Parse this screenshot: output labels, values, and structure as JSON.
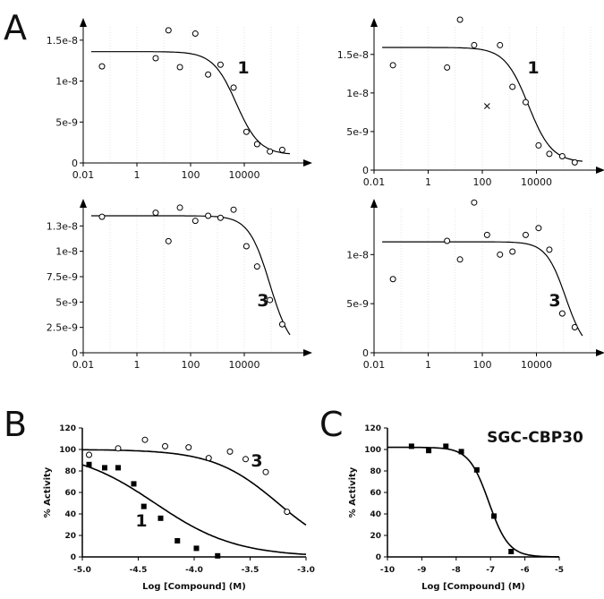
{
  "panel_letters": [
    "A",
    "B",
    "C"
  ],
  "chart_data": [
    {
      "id": "A1",
      "type": "scatter",
      "xscale": "log",
      "xticks": [
        "0.01",
        "1",
        "100",
        "10000"
      ],
      "yticks": [
        {
          "v": 0,
          "label": "0"
        },
        {
          "v": 5e-09,
          "label": "5e-9"
        },
        {
          "v": 1e-08,
          "label": "1e-8"
        },
        {
          "v": 1.5e-08,
          "label": "1.5e-8"
        }
      ],
      "compound_label": "1",
      "points": [
        [
          0.05,
          1.18e-08
        ],
        [
          5,
          1.28e-08
        ],
        [
          15,
          1.62e-08
        ],
        [
          40,
          1.17e-08
        ],
        [
          150,
          1.58e-08
        ],
        [
          450,
          1.08e-08
        ],
        [
          1300,
          1.2e-08
        ],
        [
          4000,
          9.2e-09
        ],
        [
          12000,
          3.8e-09
        ],
        [
          30000,
          2.3e-09
        ],
        [
          90000,
          1.4e-09
        ],
        [
          260000,
          1.6e-09
        ]
      ],
      "outliers": [],
      "fit": {
        "top": 1.36e-08,
        "bottom": 1e-09,
        "ic50": 5000,
        "hill": 1
      }
    },
    {
      "id": "A2",
      "type": "scatter",
      "xscale": "log",
      "xticks": [
        "0.01",
        "1",
        "100",
        "10000"
      ],
      "yticks": [
        {
          "v": 0,
          "label": "0"
        },
        {
          "v": 5e-09,
          "label": "5e-9"
        },
        {
          "v": 1e-08,
          "label": "1e-8"
        },
        {
          "v": 1.5e-08,
          "label": "1.5e-8"
        }
      ],
      "compound_label": "1",
      "points": [
        [
          0.05,
          1.36e-08
        ],
        [
          5,
          1.33e-08
        ],
        [
          15,
          1.95e-08
        ],
        [
          50,
          1.62e-08
        ],
        [
          450,
          1.62e-08
        ],
        [
          1300,
          1.08e-08
        ],
        [
          4000,
          8.8e-09
        ],
        [
          12000,
          3.2e-09
        ],
        [
          30000,
          2.1e-09
        ],
        [
          90000,
          1.8e-09
        ],
        [
          260000,
          1e-09
        ]
      ],
      "outliers": [
        [
          150,
          8.3e-09
        ]
      ],
      "fit": {
        "top": 1.59e-08,
        "bottom": 1e-09,
        "ic50": 5000,
        "hill": 1
      }
    },
    {
      "id": "A3",
      "type": "scatter",
      "xscale": "log",
      "xticks": [
        "0.01",
        "1",
        "100",
        "10000"
      ],
      "yticks": [
        {
          "v": 0,
          "label": "0"
        },
        {
          "v": 2.5e-09,
          "label": "2.5e-9"
        },
        {
          "v": 5e-09,
          "label": "5e-9"
        },
        {
          "v": 7.5e-09,
          "label": "7.5e-9"
        },
        {
          "v": 1e-08,
          "label": "1e-8"
        },
        {
          "v": 1.25e-08,
          "label": "1.3e-8"
        }
      ],
      "compound_label": "3",
      "points": [
        [
          0.05,
          1.34e-08
        ],
        [
          5,
          1.38e-08
        ],
        [
          15,
          1.1e-08
        ],
        [
          40,
          1.43e-08
        ],
        [
          150,
          1.3e-08
        ],
        [
          450,
          1.35e-08
        ],
        [
          1300,
          1.33e-08
        ],
        [
          4000,
          1.41e-08
        ],
        [
          12000,
          1.05e-08
        ],
        [
          30000,
          8.5e-09
        ],
        [
          90000,
          5.2e-09
        ],
        [
          260000,
          2.8e-09
        ]
      ],
      "outliers": [],
      "fit": {
        "top": 1.35e-08,
        "bottom": 0,
        "ic50": 90000,
        "hill": 1.1
      }
    },
    {
      "id": "A4",
      "type": "scatter",
      "xscale": "log",
      "xticks": [
        "0.01",
        "1",
        "100",
        "10000"
      ],
      "yticks": [
        {
          "v": 0,
          "label": "0"
        },
        {
          "v": 5e-09,
          "label": "5e-9"
        },
        {
          "v": 1e-08,
          "label": "1e-8"
        }
      ],
      "compound_label": "3",
      "points": [
        [
          0.05,
          7.5e-09
        ],
        [
          5,
          1.14e-08
        ],
        [
          15,
          9.5e-09
        ],
        [
          50,
          1.53e-08
        ],
        [
          150,
          1.2e-08
        ],
        [
          450,
          1e-08
        ],
        [
          1300,
          1.03e-08
        ],
        [
          4000,
          1.2e-08
        ],
        [
          12000,
          1.27e-08
        ],
        [
          30000,
          1.05e-08
        ],
        [
          90000,
          4e-09
        ],
        [
          260000,
          2.6e-09
        ]
      ],
      "outliers": [],
      "fit": {
        "top": 1.13e-08,
        "bottom": 0,
        "ic50": 120000,
        "hill": 1.2
      }
    },
    {
      "id": "B",
      "type": "scatter",
      "xlabel": "Log [Compound] (M)",
      "ylabel": "% Activity",
      "xlim": [
        -5.0,
        -3.0
      ],
      "ylim": [
        0,
        120
      ],
      "xticks": [
        "-5.0",
        "-4.5",
        "-4.0",
        "-3.5",
        "-3.0"
      ],
      "yticks": [
        "0",
        "20",
        "40",
        "60",
        "80",
        "100",
        "120"
      ],
      "series": [
        {
          "marker": "square",
          "label": "1",
          "points": [
            [
              -4.94,
              86
            ],
            [
              -4.8,
              83
            ],
            [
              -4.68,
              83
            ],
            [
              -4.54,
              68
            ],
            [
              -4.45,
              47
            ],
            [
              -4.3,
              36
            ],
            [
              -4.15,
              15
            ],
            [
              -3.98,
              8
            ],
            [
              -3.79,
              1
            ]
          ],
          "fit": {
            "top": 100,
            "bottom": 0,
            "logic50": -4.35,
            "hill": 1.2
          }
        },
        {
          "marker": "circle",
          "label": "3",
          "points": [
            [
              -4.94,
              95
            ],
            [
              -4.68,
              101
            ],
            [
              -4.44,
              109
            ],
            [
              -4.26,
              103
            ],
            [
              -4.05,
              102
            ],
            [
              -3.87,
              92
            ],
            [
              -3.68,
              98
            ],
            [
              -3.54,
              91
            ],
            [
              -3.36,
              79
            ],
            [
              -3.17,
              42
            ]
          ],
          "fit": {
            "top": 100,
            "bottom": 0,
            "logic50": -3.25,
            "hill": 1.5
          }
        }
      ]
    },
    {
      "id": "C",
      "type": "scatter",
      "xlabel": "Log [Compound] (M)",
      "ylabel": "% Activity",
      "xlim": [
        -10,
        -5
      ],
      "ylim": [
        0,
        120
      ],
      "xticks": [
        "-10",
        "-9",
        "-8",
        "-7",
        "-6",
        "-5"
      ],
      "yticks": [
        "0",
        "20",
        "40",
        "60",
        "80",
        "100",
        "120"
      ],
      "compound_label": "SGC-CBP30",
      "series": [
        {
          "marker": "square",
          "points": [
            [
              -9.3,
              103
            ],
            [
              -8.8,
              99
            ],
            [
              -8.3,
              103
            ],
            [
              -7.85,
              98
            ],
            [
              -7.4,
              81
            ],
            [
              -6.9,
              38
            ],
            [
              -6.4,
              5
            ]
          ],
          "fit": {
            "top": 102,
            "bottom": 0,
            "logic50": -7.05,
            "hill": 1.5
          }
        }
      ]
    }
  ]
}
